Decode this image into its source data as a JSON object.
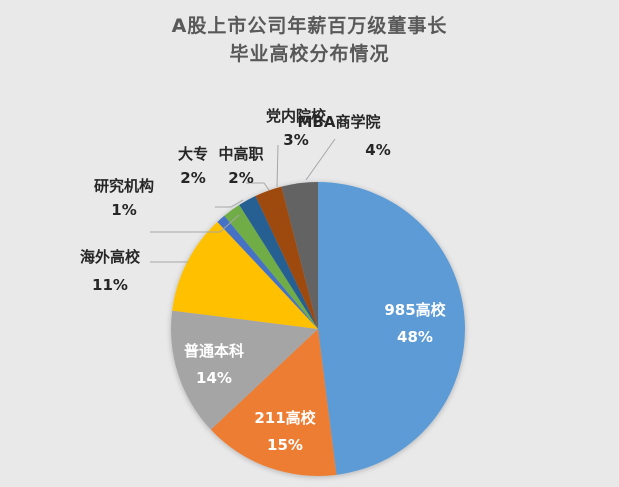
{
  "chart_data": {
    "type": "pie",
    "title": "A股上市公司年薪百万级董事长毕业高校分布情况",
    "title_lines": [
      "A股上市公司年薪百万级董事长",
      "毕业高校分布情况"
    ],
    "categories": [
      "985高校",
      "211高校",
      "普通本科",
      "海外高校",
      "研究机构",
      "大专",
      "中高职",
      "党内院校",
      "MBA商学院"
    ],
    "values": [
      48,
      15,
      14,
      11,
      1,
      2,
      2,
      3,
      4
    ],
    "value_labels": [
      "48%",
      "15%",
      "14%",
      "11%",
      "1%",
      "2%",
      "2%",
      "3%",
      "4%"
    ],
    "colors": [
      "#5b9bd5",
      "#ed7d31",
      "#a5a5a5",
      "#ffc000",
      "#4472c4",
      "#70ad47",
      "#255e91",
      "#9e480e",
      "#636363"
    ],
    "start_angle": "12 o'clock",
    "direction": "clockwise",
    "legend": "none (data labels with leader lines)"
  },
  "title": {
    "line1": "A股上市公司年薪百万级董事长",
    "line2": "毕业高校分布情况"
  },
  "labels": {
    "s985": {
      "name": "985高校",
      "pct": "48%"
    },
    "s211": {
      "name": "211高校",
      "pct": "15%"
    },
    "regular": {
      "name": "普通本科",
      "pct": "14%"
    },
    "overseas": {
      "name": "海外高校",
      "pct": "11%"
    },
    "research": {
      "name": "研究机构",
      "pct": "1%"
    },
    "junior": {
      "name": "大专",
      "pct": "2%"
    },
    "vocational": {
      "name": "中高职",
      "pct": "2%"
    },
    "party": {
      "name": "党内院校",
      "pct": "3%"
    },
    "mba": {
      "name": "MBA商学院",
      "pct": "4%"
    }
  }
}
